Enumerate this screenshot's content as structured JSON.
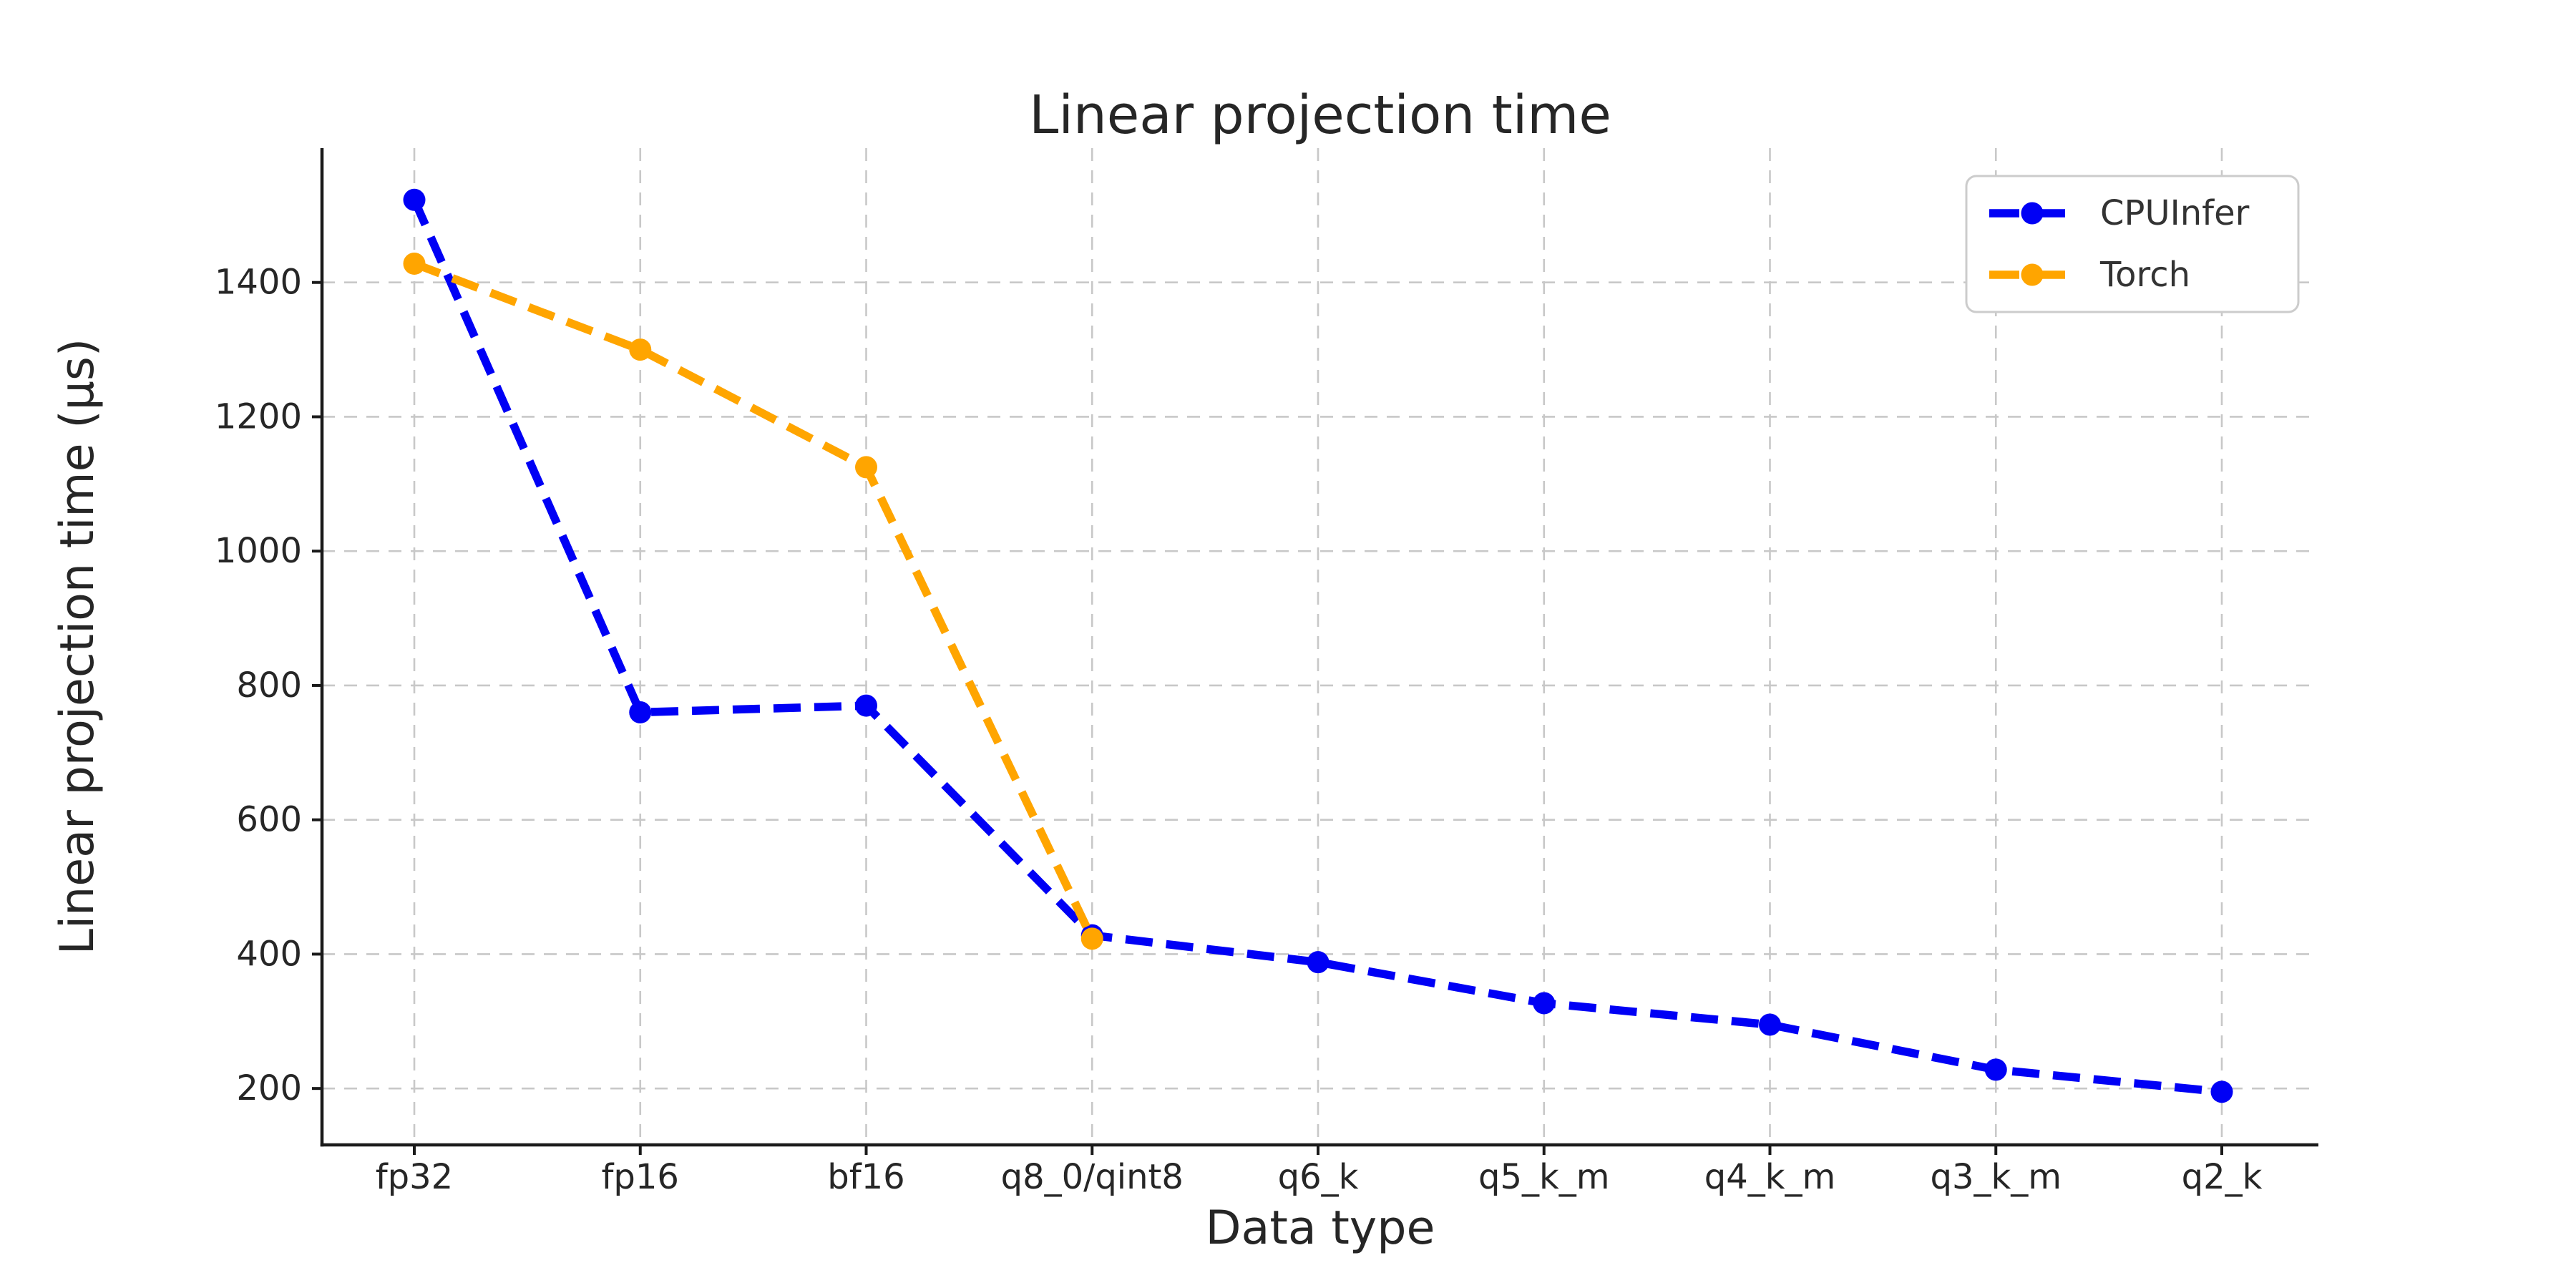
{
  "figure": {
    "background": "#ffffff"
  },
  "chart_data": {
    "type": "line",
    "title": "Linear projection time",
    "xlabel": "Data type",
    "ylabel": "Linear projection time (μs)",
    "categories": [
      "fp32",
      "fp16",
      "bf16",
      "q8_0/qint8",
      "q6_k",
      "q5_k_m",
      "q4_k_m",
      "q3_k_m",
      "q2_k"
    ],
    "series": [
      {
        "name": "CPUInfer",
        "color": "#0000f5",
        "values": [
          1523,
          760,
          770,
          428,
          388,
          327,
          295,
          228,
          195
        ]
      },
      {
        "name": "Torch",
        "color": "#ffa500",
        "values": [
          1428,
          1300,
          1125,
          423,
          null,
          null,
          null,
          null,
          null
        ]
      }
    ],
    "ylim": [
      116,
      1600
    ],
    "yticks": [
      200,
      400,
      600,
      800,
      1000,
      1200,
      1400
    ],
    "grid": true,
    "grid_on": "both",
    "line_style": "dashed",
    "marker": "circle",
    "legend_position": "upper right",
    "legend_entries": [
      "CPUInfer",
      "Torch"
    ]
  },
  "style": {
    "text_color": "#262626",
    "tick_label_color": "#262626",
    "grid_color": "#c8c8c8",
    "spine_color": "#1a1a1a",
    "legend_border_color": "#cccccc",
    "legend_bg_color": "#ffffff",
    "legend_text_color": "#333333"
  }
}
